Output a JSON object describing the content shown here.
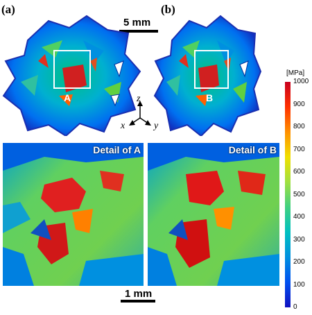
{
  "panels": {
    "a_label": "(a)",
    "b_label": "(b)",
    "roi_a": "A",
    "roi_b": "B"
  },
  "scale_bars": {
    "top": "5 mm",
    "bottom": "1 mm"
  },
  "axes": {
    "z": "z",
    "x": "x",
    "y": "y"
  },
  "details": {
    "a_title": "Detail of A",
    "b_title": "Detail of B"
  },
  "colorbar": {
    "unit": "[MPa]",
    "ticks": [
      "1000",
      "900",
      "800",
      "700",
      "600",
      "500",
      "400",
      "300",
      "200",
      "100",
      "0"
    ],
    "colors": [
      "#c8001e",
      "#ff3000",
      "#ff9000",
      "#f0e000",
      "#a0e040",
      "#40d080",
      "#00c0c0",
      "#0090e0",
      "#0050f0",
      "#1010c0"
    ]
  }
}
